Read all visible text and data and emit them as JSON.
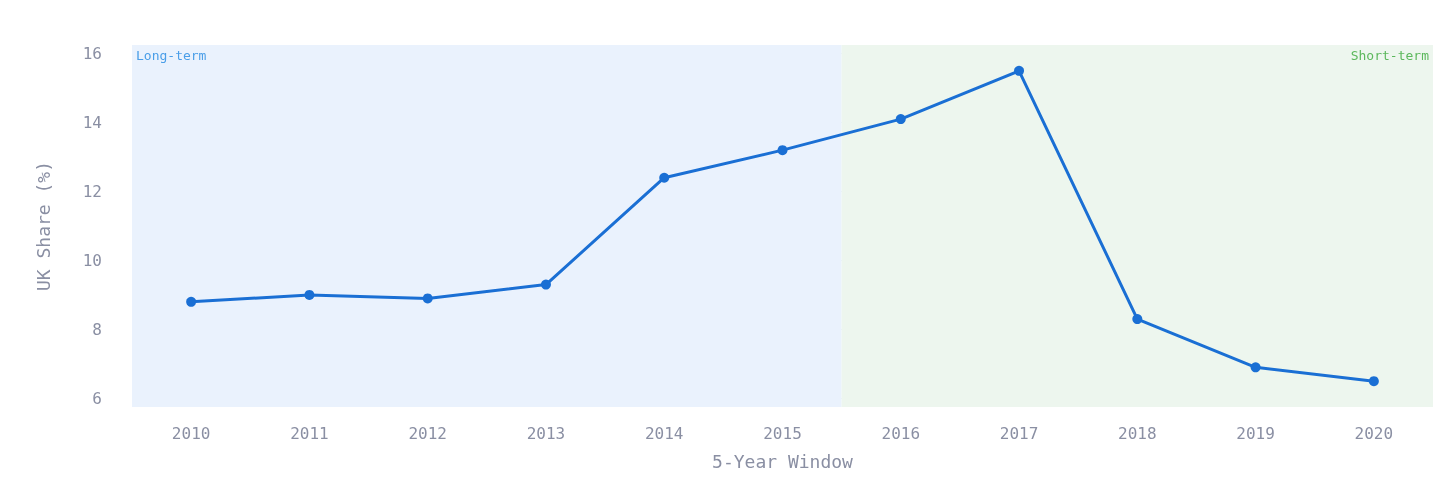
{
  "chart_data": {
    "type": "line",
    "xlabel": "5-Year Window",
    "ylabel": "UK Share (%)",
    "x": [
      2010,
      2011,
      2012,
      2013,
      2014,
      2015,
      2016,
      2017,
      2018,
      2019,
      2020
    ],
    "series": [
      {
        "color": "#1a6fd4",
        "values": [
          8.8,
          9.0,
          8.9,
          9.3,
          12.4,
          13.2,
          14.1,
          15.5,
          8.3,
          6.9,
          6.5
        ]
      }
    ],
    "xlim": [
      2009.5,
      2020.5
    ],
    "xticks": [
      2010,
      2011,
      2012,
      2013,
      2014,
      2015,
      2016,
      2017,
      2018,
      2019,
      2020
    ],
    "ylim": [
      5.75,
      16.25
    ],
    "yticks": [
      6,
      8,
      10,
      12,
      14,
      16
    ],
    "bands": [
      {
        "axis": "x",
        "from": 2009.5,
        "to": 2015.5,
        "label": "Long-term",
        "color": "#eaf2fd"
      },
      {
        "axis": "x",
        "from": 2015.5,
        "to": 2020.5,
        "label": "Short-term",
        "color": "#edf6ee"
      }
    ],
    "grid": "y",
    "marker": "circle",
    "line_style": "solid"
  }
}
